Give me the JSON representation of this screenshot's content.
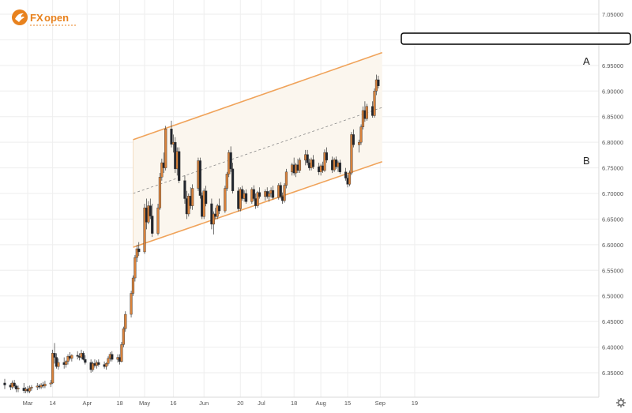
{
  "brand": {
    "name": "FXOpen",
    "colors": {
      "orange": "#e8821e",
      "ink": "#222222"
    }
  },
  "chart_data": {
    "type": "candlestick",
    "title": "",
    "xlabel": "",
    "ylabel": "",
    "ylim": [
      6.31,
      7.07
    ],
    "y_ticks": [
      "7.05000",
      "7.00000",
      "6.95000",
      "6.90000",
      "6.85000",
      "6.80000",
      "6.75000",
      "6.70000",
      "6.65000",
      "6.60000",
      "6.55000",
      "6.50000",
      "6.45000",
      "6.40000",
      "6.35000"
    ],
    "x_ticks": [
      "Mar",
      "14",
      "Apr",
      "18",
      "May",
      "16",
      "Jun",
      "20",
      "Jul",
      "18",
      "Aug",
      "15",
      "Sep",
      "19"
    ],
    "grid": true,
    "colors": {
      "up": "#d9823b",
      "down": "#22262e",
      "channel": "#f0a35a",
      "grid": "#eeeeee",
      "channel_fill": "#fbf6ee"
    },
    "price_box": "",
    "annotations": [
      {
        "text": "A",
        "near": "upper channel line, right end"
      },
      {
        "text": "B",
        "near": "lower channel line, right end"
      }
    ],
    "channel": {
      "upper": [
        {
          "x": "2023-04-25",
          "y": 6.805
        },
        {
          "x": "2023-09-02",
          "y": 6.975
        }
      ],
      "lower": [
        {
          "x": "2023-04-25",
          "y": 6.595
        },
        {
          "x": "2023-09-02",
          "y": 6.762
        }
      ],
      "mid_dashed": [
        {
          "x": "2023-04-25",
          "y": 6.7
        },
        {
          "x": "2023-09-02",
          "y": 6.868
        }
      ]
    },
    "candles": [
      [
        "2023-02-17",
        6.33,
        6.338,
        6.318,
        6.326
      ],
      [
        "2023-02-20",
        6.326,
        6.33,
        6.316,
        6.322
      ],
      [
        "2023-02-21",
        6.322,
        6.335,
        6.318,
        6.33
      ],
      [
        "2023-02-22",
        6.33,
        6.336,
        6.32,
        6.324
      ],
      [
        "2023-02-23",
        6.324,
        6.327,
        6.312,
        6.318
      ],
      [
        "2023-02-24",
        6.318,
        6.325,
        6.312,
        6.32
      ],
      [
        "2023-02-27",
        6.32,
        6.33,
        6.31,
        6.315
      ],
      [
        "2023-02-28",
        6.315,
        6.322,
        6.31,
        6.318
      ],
      [
        "2023-03-01",
        6.318,
        6.324,
        6.31,
        6.314
      ],
      [
        "2023-03-02",
        6.314,
        6.325,
        6.31,
        6.32
      ],
      [
        "2023-03-03",
        6.32,
        6.326,
        6.315,
        6.322
      ],
      [
        "2023-03-06",
        6.322,
        6.33,
        6.316,
        6.324
      ],
      [
        "2023-03-07",
        6.324,
        6.328,
        6.318,
        6.322
      ],
      [
        "2023-03-08",
        6.322,
        6.33,
        6.318,
        6.326
      ],
      [
        "2023-03-09",
        6.326,
        6.332,
        6.32,
        6.324
      ],
      [
        "2023-03-10",
        6.324,
        6.334,
        6.32,
        6.328
      ],
      [
        "2023-03-13",
        6.328,
        6.336,
        6.322,
        6.33
      ],
      [
        "2023-03-14",
        6.33,
        6.395,
        6.328,
        6.388
      ],
      [
        "2023-03-15",
        6.388,
        6.408,
        6.368,
        6.38
      ],
      [
        "2023-03-16",
        6.38,
        6.388,
        6.358,
        6.362
      ],
      [
        "2023-03-17",
        6.362,
        6.378,
        6.356,
        6.37
      ],
      [
        "2023-03-20",
        6.37,
        6.38,
        6.358,
        6.366
      ],
      [
        "2023-03-21",
        6.366,
        6.374,
        6.36,
        6.372
      ],
      [
        "2023-03-22",
        6.372,
        6.386,
        6.366,
        6.382
      ],
      [
        "2023-03-23",
        6.382,
        6.39,
        6.374,
        6.378
      ],
      [
        "2023-03-24",
        6.378,
        6.386,
        6.372,
        6.384
      ],
      [
        "2023-03-27",
        6.384,
        6.392,
        6.376,
        6.382
      ],
      [
        "2023-03-28",
        6.382,
        6.388,
        6.374,
        6.38
      ],
      [
        "2023-03-29",
        6.38,
        6.395,
        6.376,
        6.388
      ],
      [
        "2023-03-30",
        6.388,
        6.392,
        6.374,
        6.376
      ],
      [
        "2023-03-31",
        6.376,
        6.384,
        6.366,
        6.37
      ],
      [
        "2023-04-03",
        6.37,
        6.376,
        6.35,
        6.356
      ],
      [
        "2023-04-04",
        6.356,
        6.372,
        6.352,
        6.368
      ],
      [
        "2023-04-05",
        6.368,
        6.376,
        6.36,
        6.364
      ],
      [
        "2023-04-06",
        6.364,
        6.374,
        6.358,
        6.37
      ],
      [
        "2023-04-07",
        6.37,
        6.376,
        6.362,
        6.366
      ],
      [
        "2023-04-10",
        6.366,
        6.372,
        6.358,
        6.362
      ],
      [
        "2023-04-11",
        6.362,
        6.37,
        6.356,
        6.368
      ],
      [
        "2023-04-12",
        6.368,
        6.382,
        6.364,
        6.378
      ],
      [
        "2023-04-13",
        6.378,
        6.39,
        6.372,
        6.386
      ],
      [
        "2023-04-14",
        6.386,
        6.392,
        6.372,
        6.376
      ],
      [
        "2023-04-17",
        6.376,
        6.386,
        6.37,
        6.38
      ],
      [
        "2023-04-18",
        6.38,
        6.386,
        6.366,
        6.372
      ],
      [
        "2023-04-19",
        6.372,
        6.41,
        6.37,
        6.405
      ],
      [
        "2023-04-20",
        6.405,
        6.44,
        6.4,
        6.436
      ],
      [
        "2023-04-21",
        6.436,
        6.47,
        6.43,
        6.464
      ],
      [
        "2023-04-24",
        6.464,
        6.51,
        6.458,
        6.505
      ],
      [
        "2023-04-25",
        6.505,
        6.54,
        6.5,
        6.535
      ],
      [
        "2023-04-26",
        6.535,
        6.58,
        6.528,
        6.575
      ],
      [
        "2023-04-27",
        6.575,
        6.6,
        6.566,
        6.592
      ],
      [
        "2023-04-28",
        6.592,
        6.605,
        6.578,
        6.586
      ],
      [
        "2023-05-01",
        6.586,
        6.68,
        6.582,
        6.672
      ],
      [
        "2023-05-02",
        6.672,
        6.69,
        6.63,
        6.644
      ],
      [
        "2023-05-03",
        6.644,
        6.685,
        6.64,
        6.676
      ],
      [
        "2023-05-04",
        6.676,
        6.69,
        6.65,
        6.656
      ],
      [
        "2023-05-05",
        6.656,
        6.68,
        6.615,
        6.622
      ],
      [
        "2023-05-08",
        6.622,
        6.68,
        6.618,
        6.672
      ],
      [
        "2023-05-09",
        6.672,
        6.74,
        6.668,
        6.732
      ],
      [
        "2023-05-10",
        6.732,
        6.768,
        6.725,
        6.76
      ],
      [
        "2023-05-11",
        6.76,
        6.78,
        6.74,
        6.75
      ],
      [
        "2023-05-12",
        6.75,
        6.832,
        6.745,
        6.826
      ],
      [
        "2023-05-15",
        6.826,
        6.842,
        6.79,
        6.796
      ],
      [
        "2023-05-16",
        6.796,
        6.815,
        6.78,
        6.8
      ],
      [
        "2023-05-17",
        6.8,
        6.81,
        6.74,
        6.748
      ],
      [
        "2023-05-18",
        6.748,
        6.79,
        6.735,
        6.782
      ],
      [
        "2023-05-19",
        6.782,
        6.79,
        6.72,
        6.725
      ],
      [
        "2023-05-22",
        6.725,
        6.735,
        6.68,
        6.69
      ],
      [
        "2023-05-23",
        6.69,
        6.705,
        6.65,
        6.66
      ],
      [
        "2023-05-24",
        6.66,
        6.7,
        6.655,
        6.695
      ],
      [
        "2023-05-25",
        6.695,
        6.712,
        6.67,
        6.676
      ],
      [
        "2023-05-26",
        6.676,
        6.718,
        6.668,
        6.71
      ],
      [
        "2023-05-29",
        6.71,
        6.77,
        6.705,
        6.764
      ],
      [
        "2023-05-30",
        6.764,
        6.77,
        6.69,
        6.696
      ],
      [
        "2023-05-31",
        6.696,
        6.702,
        6.65,
        6.655
      ],
      [
        "2023-06-01",
        6.655,
        6.71,
        6.65,
        6.705
      ],
      [
        "2023-06-02",
        6.705,
        6.715,
        6.675,
        6.68
      ],
      [
        "2023-06-05",
        6.68,
        6.69,
        6.63,
        6.64
      ],
      [
        "2023-06-06",
        6.64,
        6.665,
        6.62,
        6.66
      ],
      [
        "2023-06-07",
        6.66,
        6.672,
        6.65,
        6.655
      ],
      [
        "2023-06-08",
        6.655,
        6.68,
        6.65,
        6.676
      ],
      [
        "2023-06-09",
        6.676,
        6.69,
        6.66,
        6.666
      ],
      [
        "2023-06-12",
        6.666,
        6.715,
        6.662,
        6.71
      ],
      [
        "2023-06-13",
        6.71,
        6.742,
        6.705,
        6.738
      ],
      [
        "2023-06-14",
        6.738,
        6.785,
        6.732,
        6.78
      ],
      [
        "2023-06-15",
        6.78,
        6.792,
        6.742,
        6.748
      ],
      [
        "2023-06-16",
        6.748,
        6.76,
        6.7,
        6.705
      ],
      [
        "2023-06-19",
        6.705,
        6.712,
        6.665,
        6.67
      ],
      [
        "2023-06-20",
        6.67,
        6.712,
        6.665,
        6.708
      ],
      [
        "2023-06-21",
        6.708,
        6.715,
        6.686,
        6.69
      ],
      [
        "2023-06-22",
        6.69,
        6.706,
        6.684,
        6.7
      ],
      [
        "2023-06-23",
        6.7,
        6.708,
        6.68,
        6.684
      ],
      [
        "2023-06-26",
        6.684,
        6.712,
        6.68,
        6.708
      ],
      [
        "2023-06-27",
        6.708,
        6.716,
        6.686,
        6.69
      ],
      [
        "2023-06-28",
        6.69,
        6.7,
        6.67,
        6.676
      ],
      [
        "2023-06-29",
        6.676,
        6.705,
        6.672,
        6.702
      ],
      [
        "2023-06-30",
        6.702,
        6.712,
        6.69,
        6.694
      ],
      [
        "2023-07-03",
        6.694,
        6.708,
        6.686,
        6.704
      ],
      [
        "2023-07-04",
        6.704,
        6.712,
        6.69,
        6.694
      ],
      [
        "2023-07-05",
        6.694,
        6.705,
        6.684,
        6.7
      ],
      [
        "2023-07-06",
        6.7,
        6.712,
        6.692,
        6.706
      ],
      [
        "2023-07-07",
        6.706,
        6.715,
        6.688,
        6.692
      ],
      [
        "2023-07-10",
        6.692,
        6.72,
        6.688,
        6.716
      ],
      [
        "2023-07-11",
        6.716,
        6.722,
        6.69,
        6.694
      ],
      [
        "2023-07-12",
        6.694,
        6.702,
        6.68,
        6.686
      ],
      [
        "2023-07-13",
        6.686,
        6.72,
        6.682,
        6.716
      ],
      [
        "2023-07-14",
        6.716,
        6.748,
        6.71,
        6.742
      ],
      [
        "2023-07-17",
        6.742,
        6.76,
        6.735,
        6.756
      ],
      [
        "2023-07-18",
        6.756,
        6.77,
        6.735,
        6.74
      ],
      [
        "2023-07-19",
        6.74,
        6.76,
        6.732,
        6.756
      ],
      [
        "2023-07-20",
        6.756,
        6.768,
        6.74,
        6.745
      ],
      [
        "2023-07-21",
        6.745,
        6.77,
        6.74,
        6.765
      ],
      [
        "2023-07-24",
        6.765,
        6.785,
        6.755,
        6.776
      ],
      [
        "2023-07-25",
        6.776,
        6.785,
        6.755,
        6.76
      ],
      [
        "2023-07-26",
        6.76,
        6.768,
        6.745,
        6.75
      ],
      [
        "2023-07-27",
        6.75,
        6.77,
        6.745,
        6.766
      ],
      [
        "2023-07-28",
        6.766,
        6.775,
        6.748,
        6.752
      ],
      [
        "2023-07-31",
        6.752,
        6.76,
        6.736,
        6.742
      ],
      [
        "2023-08-01",
        6.742,
        6.758,
        6.735,
        6.754
      ],
      [
        "2023-08-02",
        6.754,
        6.762,
        6.74,
        6.745
      ],
      [
        "2023-08-03",
        6.745,
        6.786,
        6.742,
        6.78
      ],
      [
        "2023-08-04",
        6.78,
        6.79,
        6.76,
        6.765
      ],
      [
        "2023-08-07",
        6.765,
        6.772,
        6.74,
        6.746
      ],
      [
        "2023-08-08",
        6.746,
        6.77,
        6.742,
        6.766
      ],
      [
        "2023-08-09",
        6.766,
        6.772,
        6.748,
        6.752
      ],
      [
        "2023-08-10",
        6.752,
        6.764,
        6.742,
        6.76
      ],
      [
        "2023-08-11",
        6.76,
        6.766,
        6.738,
        6.742
      ],
      [
        "2023-08-14",
        6.742,
        6.75,
        6.725,
        6.73
      ],
      [
        "2023-08-15",
        6.73,
        6.736,
        6.712,
        6.718
      ],
      [
        "2023-08-16",
        6.718,
        6.745,
        6.714,
        6.74
      ],
      [
        "2023-08-17",
        6.74,
        6.82,
        6.736,
        6.815
      ],
      [
        "2023-08-18",
        6.815,
        6.825,
        6.79,
        6.795
      ],
      [
        "2023-08-21",
        6.795,
        6.805,
        6.78,
        6.8
      ],
      [
        "2023-08-22",
        6.8,
        6.835,
        6.795,
        6.83
      ],
      [
        "2023-08-23",
        6.83,
        6.87,
        6.825,
        6.862
      ],
      [
        "2023-08-24",
        6.862,
        6.88,
        6.84,
        6.846
      ],
      [
        "2023-08-25",
        6.846,
        6.875,
        6.842,
        6.87
      ],
      [
        "2023-08-28",
        6.87,
        6.88,
        6.848,
        6.852
      ],
      [
        "2023-08-29",
        6.852,
        6.905,
        6.848,
        6.9
      ],
      [
        "2023-08-30",
        6.9,
        6.932,
        6.892,
        6.922
      ],
      [
        "2023-08-31",
        6.922,
        6.93,
        6.905,
        6.91
      ]
    ]
  }
}
